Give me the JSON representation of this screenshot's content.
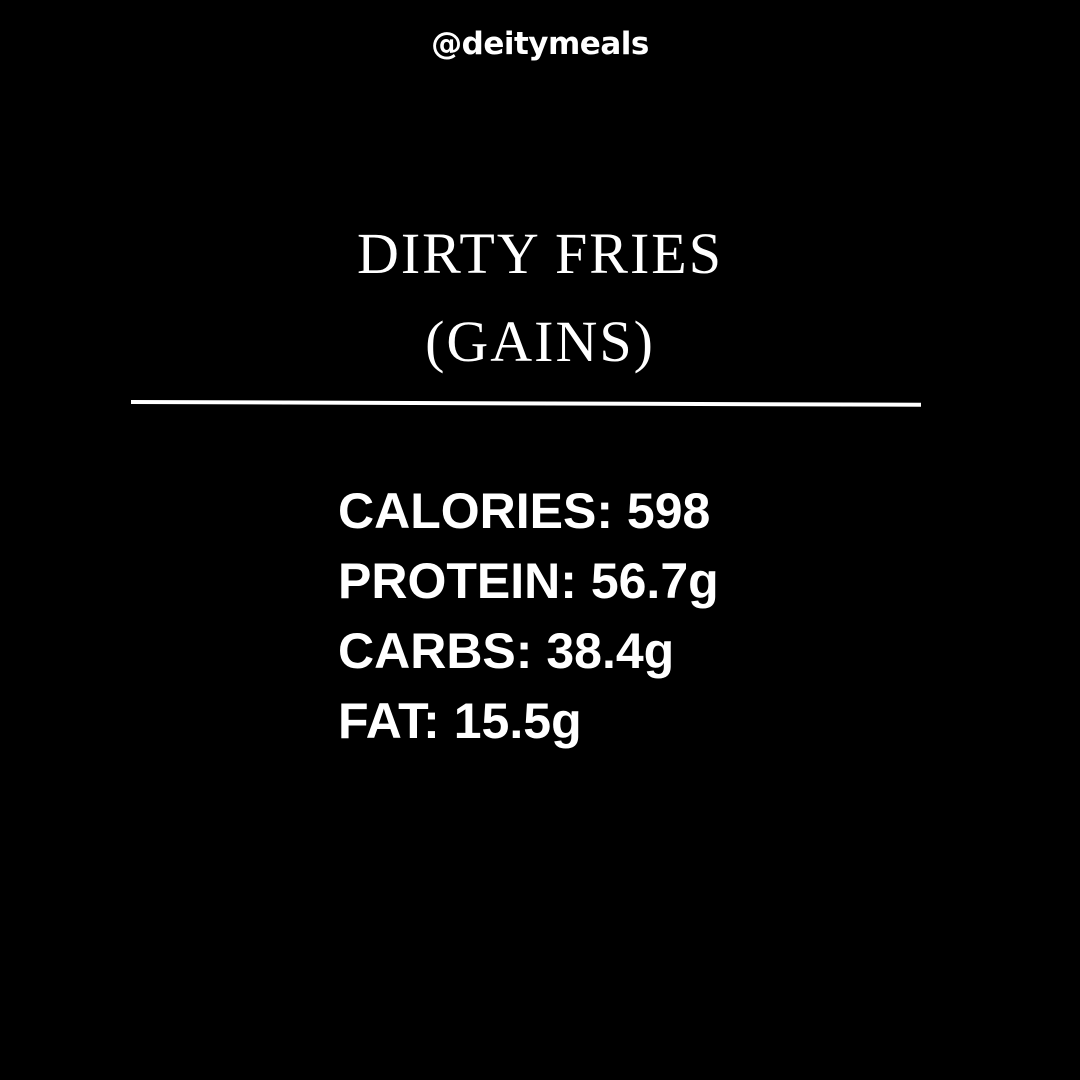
{
  "handle": "@deitymeals",
  "title": {
    "line1": "DIRTY FRIES",
    "line2": "(GAINS)"
  },
  "nutrition": [
    {
      "label": "CALORIES:",
      "value": "598"
    },
    {
      "label": "PROTEIN:",
      "value": "56.7g"
    },
    {
      "label": "CARBS:",
      "value": "38.4g"
    },
    {
      "label": "FAT:",
      "value": "15.5g"
    }
  ],
  "colors": {
    "background": "#000000",
    "text": "#ffffff"
  }
}
